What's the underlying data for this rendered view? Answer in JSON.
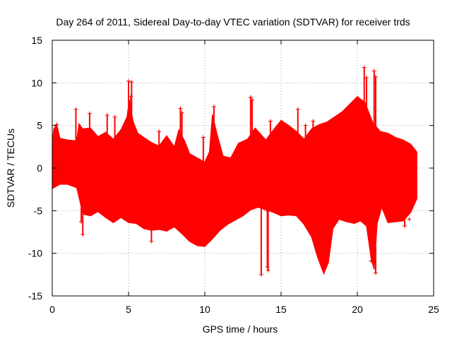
{
  "chart_data": {
    "type": "scatter",
    "title": "Day 264 of 2011, Sidereal Day-to-day VTEC variation (SDTVAR) for receiver trds",
    "xlabel": "GPS time / hours",
    "ylabel": "SDTVAR / TECUs",
    "xlim": [
      0,
      25
    ],
    "ylim": [
      -15,
      15
    ],
    "grid": true,
    "x_ticks": [
      0,
      5,
      10,
      15,
      20,
      25
    ],
    "x_tick_labels": [
      "0",
      "5",
      "10",
      "15",
      "20",
      "25"
    ],
    "y_ticks": [
      -15,
      -10,
      -5,
      0,
      5,
      10,
      15
    ],
    "y_tick_labels": [
      "-15",
      "-10",
      "-5",
      "0",
      "5",
      "10",
      "15"
    ],
    "marker": "+",
    "color": "#ff0000",
    "series": [
      {
        "name": "SDTVAR",
        "upper_envelope": [
          [
            0.0,
            3.0
          ],
          [
            0.1,
            4.6
          ],
          [
            0.3,
            5.1
          ],
          [
            0.5,
            3.5
          ],
          [
            1.0,
            3.3
          ],
          [
            1.6,
            3.2
          ],
          [
            1.75,
            5.2
          ],
          [
            2.0,
            4.6
          ],
          [
            2.5,
            4.7
          ],
          [
            3.0,
            3.7
          ],
          [
            3.5,
            4.2
          ],
          [
            4.0,
            3.4
          ],
          [
            4.5,
            4.5
          ],
          [
            4.9,
            6.0
          ],
          [
            5.05,
            8.0
          ],
          [
            5.3,
            5.5
          ],
          [
            5.6,
            4.1
          ],
          [
            6.0,
            3.6
          ],
          [
            6.5,
            3.0
          ],
          [
            7.0,
            2.6
          ],
          [
            7.5,
            3.8
          ],
          [
            8.0,
            2.5
          ],
          [
            8.3,
            4.5
          ],
          [
            8.7,
            3.1
          ],
          [
            9.0,
            1.7
          ],
          [
            9.5,
            1.2
          ],
          [
            10.0,
            0.7
          ],
          [
            10.3,
            1.9
          ],
          [
            10.5,
            6.3
          ],
          [
            10.8,
            4.0
          ],
          [
            11.2,
            1.4
          ],
          [
            11.7,
            1.2
          ],
          [
            12.2,
            2.9
          ],
          [
            12.8,
            3.4
          ],
          [
            13.3,
            4.7
          ],
          [
            14.0,
            3.3
          ],
          [
            14.5,
            4.5
          ],
          [
            15.0,
            5.6
          ],
          [
            15.5,
            5.0
          ],
          [
            16.0,
            4.3
          ],
          [
            16.5,
            3.4
          ],
          [
            17.0,
            4.6
          ],
          [
            17.5,
            5.1
          ],
          [
            18.0,
            5.4
          ],
          [
            18.5,
            6.0
          ],
          [
            19.0,
            6.6
          ],
          [
            19.5,
            7.5
          ],
          [
            20.0,
            8.4
          ],
          [
            20.5,
            7.7
          ],
          [
            21.0,
            5.4
          ],
          [
            21.5,
            4.3
          ],
          [
            22.0,
            4.1
          ],
          [
            22.5,
            3.6
          ],
          [
            23.0,
            3.3
          ],
          [
            23.5,
            2.8
          ],
          [
            23.9,
            1.9
          ]
        ],
        "lower_envelope": [
          [
            0.0,
            -2.4
          ],
          [
            0.5,
            -1.9
          ],
          [
            1.0,
            -1.9
          ],
          [
            1.6,
            -2.3
          ],
          [
            1.8,
            -3.8
          ],
          [
            2.0,
            -5.4
          ],
          [
            2.5,
            -5.6
          ],
          [
            3.0,
            -5.1
          ],
          [
            3.5,
            -5.8
          ],
          [
            4.0,
            -6.4
          ],
          [
            4.5,
            -5.8
          ],
          [
            5.0,
            -6.4
          ],
          [
            5.5,
            -6.5
          ],
          [
            6.0,
            -7.1
          ],
          [
            6.5,
            -7.3
          ],
          [
            7.0,
            -7.2
          ],
          [
            7.5,
            -7.4
          ],
          [
            8.0,
            -6.9
          ],
          [
            8.5,
            -7.7
          ],
          [
            9.0,
            -8.6
          ],
          [
            9.5,
            -9.1
          ],
          [
            10.0,
            -9.2
          ],
          [
            10.5,
            -8.3
          ],
          [
            11.0,
            -7.3
          ],
          [
            11.5,
            -6.6
          ],
          [
            12.0,
            -6.1
          ],
          [
            12.5,
            -5.6
          ],
          [
            13.0,
            -4.9
          ],
          [
            13.5,
            -4.6
          ],
          [
            14.0,
            -4.9
          ],
          [
            14.5,
            -5.2
          ],
          [
            15.0,
            -5.6
          ],
          [
            15.5,
            -5.5
          ],
          [
            16.0,
            -5.6
          ],
          [
            16.5,
            -6.6
          ],
          [
            17.0,
            -8.1
          ],
          [
            17.4,
            -10.5
          ],
          [
            17.8,
            -12.4
          ],
          [
            18.1,
            -11.1
          ],
          [
            18.4,
            -7.1
          ],
          [
            18.8,
            -6.0
          ],
          [
            19.3,
            -6.3
          ],
          [
            19.8,
            -6.5
          ],
          [
            20.2,
            -6.2
          ],
          [
            20.6,
            -6.8
          ],
          [
            20.9,
            -10.6
          ],
          [
            21.1,
            -11.9
          ],
          [
            21.3,
            -6.5
          ],
          [
            21.6,
            -4.6
          ],
          [
            22.0,
            -6.4
          ],
          [
            22.5,
            -6.3
          ],
          [
            23.0,
            -6.2
          ],
          [
            23.5,
            -5.2
          ],
          [
            23.9,
            -3.6
          ]
        ],
        "spikes": [
          [
            0.3,
            5.1
          ],
          [
            1.55,
            6.9
          ],
          [
            2.45,
            6.4
          ],
          [
            3.6,
            6.2
          ],
          [
            4.1,
            6.0
          ],
          [
            5.0,
            10.2
          ],
          [
            5.2,
            10.1
          ],
          [
            5.15,
            8.4
          ],
          [
            7.0,
            4.3
          ],
          [
            7.7,
            3.0
          ],
          [
            8.4,
            7.0
          ],
          [
            8.5,
            6.5
          ],
          [
            9.9,
            3.6
          ],
          [
            10.6,
            7.2
          ],
          [
            13.0,
            8.3
          ],
          [
            13.1,
            8.0
          ],
          [
            14.3,
            5.5
          ],
          [
            16.1,
            6.9
          ],
          [
            16.6,
            5.0
          ],
          [
            17.1,
            5.5
          ],
          [
            20.45,
            11.8
          ],
          [
            20.6,
            10.6
          ],
          [
            21.1,
            11.4
          ],
          [
            21.2,
            10.7
          ],
          [
            2.0,
            -7.8
          ],
          [
            1.9,
            -6.3
          ],
          [
            6.5,
            -8.6
          ],
          [
            8.3,
            -6.6
          ],
          [
            13.7,
            -12.5
          ],
          [
            14.1,
            -11.6
          ],
          [
            14.15,
            -12.0
          ],
          [
            14.05,
            -4.9
          ],
          [
            16.55,
            -6.5
          ],
          [
            20.9,
            -10.9
          ],
          [
            21.2,
            -12.3
          ],
          [
            23.1,
            -6.8
          ],
          [
            23.4,
            -6.0
          ]
        ]
      }
    ]
  }
}
